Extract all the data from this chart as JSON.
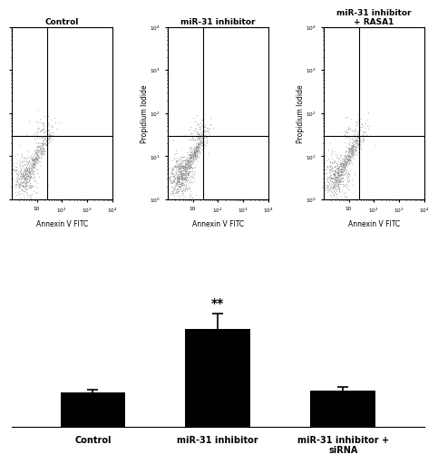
{
  "scatter_titles": [
    "Control",
    "miR-31 inhibitor",
    "miR-31 inhibitor\n+ RASA1"
  ],
  "bar_categories": [
    "Control",
    "miR-31 inhibitor",
    "miR-31 inhibitor +\nsiRNA"
  ],
  "bar_values": [
    18,
    52,
    19
  ],
  "bar_errors": [
    1.5,
    8,
    2.0
  ],
  "bar_color": "#000000",
  "significance_label": "**",
  "background_color": "#ffffff",
  "scatter_dot_color": "#888888",
  "scatter_seeds": [
    42,
    123,
    77
  ],
  "scatter_n_points": [
    700,
    1000,
    850
  ],
  "xaxis_scatter_label": "Annexin V FITC",
  "yaxis_scatter_label": "Propidium Iodide"
}
